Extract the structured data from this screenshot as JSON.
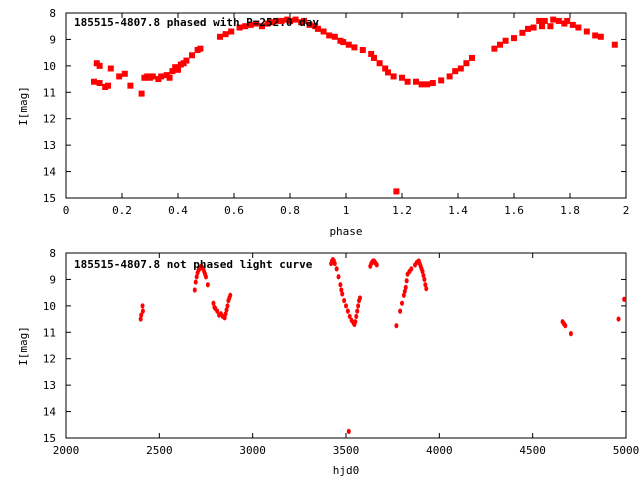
{
  "chart_data": [
    {
      "type": "scatter",
      "title": "185515-4807.8 phased with P=252.0 day",
      "xlabel": "phase",
      "ylabel": "I[mag]",
      "xlim": [
        0,
        2
      ],
      "ylim": [
        15,
        8
      ],
      "y_inverted": true,
      "x_ticks": [
        0,
        0.2,
        0.4,
        0.6,
        0.8,
        1,
        1.2,
        1.4,
        1.6,
        1.8,
        2
      ],
      "x_tick_labels": [
        "0",
        "0.2",
        "0.4",
        "0.6",
        "0.8",
        "1",
        "1.2",
        "1.4",
        "1.6",
        "1.8",
        "2"
      ],
      "y_ticks": [
        8,
        9,
        10,
        11,
        12,
        13,
        14,
        15
      ],
      "y_tick_labels": [
        "8",
        "9",
        "10",
        "11",
        "12",
        "13",
        "14",
        "15"
      ],
      "grid": false,
      "marker_color": "#ff0000",
      "marker": "filled-square",
      "series": [
        {
          "points": [
            [
              0.1,
              10.6
            ],
            [
              0.11,
              9.9
            ],
            [
              0.12,
              10.0
            ],
            [
              0.12,
              10.65
            ],
            [
              0.14,
              10.8
            ],
            [
              0.15,
              10.75
            ],
            [
              0.16,
              10.1
            ],
            [
              0.19,
              10.4
            ],
            [
              0.21,
              10.3
            ],
            [
              0.23,
              10.75
            ],
            [
              0.27,
              11.05
            ],
            [
              0.28,
              10.45
            ],
            [
              0.29,
              10.4
            ],
            [
              0.3,
              10.45
            ],
            [
              0.31,
              10.4
            ],
            [
              0.33,
              10.5
            ],
            [
              0.34,
              10.4
            ],
            [
              0.36,
              10.35
            ],
            [
              0.37,
              10.45
            ],
            [
              0.38,
              10.2
            ],
            [
              0.39,
              10.05
            ],
            [
              0.4,
              10.15
            ],
            [
              0.41,
              9.95
            ],
            [
              0.42,
              9.9
            ],
            [
              0.43,
              9.8
            ],
            [
              0.45,
              9.6
            ],
            [
              0.47,
              9.4
            ],
            [
              0.48,
              9.35
            ],
            [
              0.55,
              8.9
            ],
            [
              0.57,
              8.8
            ],
            [
              0.59,
              8.7
            ],
            [
              0.62,
              8.55
            ],
            [
              0.64,
              8.5
            ],
            [
              0.66,
              8.45
            ],
            [
              0.68,
              8.4
            ],
            [
              0.7,
              8.5
            ],
            [
              0.72,
              8.4
            ],
            [
              0.73,
              8.35
            ],
            [
              0.75,
              8.3
            ],
            [
              0.77,
              8.3
            ],
            [
              0.79,
              8.25
            ],
            [
              0.8,
              8.3
            ],
            [
              0.82,
              8.25
            ],
            [
              0.84,
              8.35
            ],
            [
              0.85,
              8.3
            ],
            [
              0.87,
              8.45
            ],
            [
              0.89,
              8.5
            ],
            [
              0.9,
              8.6
            ],
            [
              0.92,
              8.7
            ],
            [
              0.94,
              8.85
            ],
            [
              0.96,
              8.9
            ],
            [
              0.98,
              9.05
            ],
            [
              0.99,
              9.1
            ],
            [
              1.01,
              9.2
            ],
            [
              1.03,
              9.3
            ],
            [
              1.06,
              9.4
            ],
            [
              1.09,
              9.55
            ],
            [
              1.1,
              9.7
            ],
            [
              1.12,
              9.9
            ],
            [
              1.14,
              10.1
            ],
            [
              1.15,
              10.25
            ],
            [
              1.17,
              10.4
            ],
            [
              1.18,
              14.75
            ],
            [
              1.2,
              10.45
            ],
            [
              1.22,
              10.6
            ],
            [
              1.25,
              10.6
            ],
            [
              1.27,
              10.7
            ],
            [
              1.29,
              10.7
            ],
            [
              1.31,
              10.65
            ],
            [
              1.34,
              10.55
            ],
            [
              1.37,
              10.4
            ],
            [
              1.39,
              10.2
            ],
            [
              1.41,
              10.1
            ],
            [
              1.43,
              9.9
            ],
            [
              1.45,
              9.7
            ],
            [
              1.53,
              9.35
            ],
            [
              1.55,
              9.2
            ],
            [
              1.57,
              9.05
            ],
            [
              1.6,
              8.95
            ],
            [
              1.63,
              8.75
            ],
            [
              1.65,
              8.6
            ],
            [
              1.67,
              8.55
            ],
            [
              1.69,
              8.3
            ],
            [
              1.7,
              8.5
            ],
            [
              1.71,
              8.3
            ],
            [
              1.73,
              8.5
            ],
            [
              1.74,
              8.25
            ],
            [
              1.76,
              8.3
            ],
            [
              1.78,
              8.4
            ],
            [
              1.79,
              8.3
            ],
            [
              1.81,
              8.45
            ],
            [
              1.83,
              8.55
            ],
            [
              1.86,
              8.7
            ],
            [
              1.89,
              8.85
            ],
            [
              1.91,
              8.9
            ],
            [
              1.96,
              9.2
            ]
          ]
        }
      ]
    },
    {
      "type": "scatter",
      "title": "185515-4807.8 not phased light curve",
      "xlabel": "hjd0",
      "ylabel": "I[mag]",
      "xlim": [
        2000,
        5000
      ],
      "ylim": [
        15,
        8
      ],
      "y_inverted": true,
      "x_ticks": [
        2000,
        2500,
        3000,
        3500,
        4000,
        4500,
        5000
      ],
      "x_tick_labels": [
        "2000",
        "2500",
        "3000",
        "3500",
        "4000",
        "4500",
        "5000"
      ],
      "y_ticks": [
        8,
        9,
        10,
        11,
        12,
        13,
        14,
        15
      ],
      "y_tick_labels": [
        "8",
        "9",
        "10",
        "11",
        "12",
        "13",
        "14",
        "15"
      ],
      "grid": false,
      "marker_color": "#ff0000",
      "marker": "filled-circle",
      "series": [
        {
          "points": [
            [
              2400,
              10.5
            ],
            [
              2403,
              10.35
            ],
            [
              2410,
              10.0
            ],
            [
              2412,
              10.2
            ],
            [
              2690,
              9.4
            ],
            [
              2695,
              9.1
            ],
            [
              2700,
              8.9
            ],
            [
              2705,
              8.75
            ],
            [
              2710,
              8.65
            ],
            [
              2715,
              8.6
            ],
            [
              2720,
              8.55
            ],
            [
              2725,
              8.5
            ],
            [
              2730,
              8.55
            ],
            [
              2735,
              8.6
            ],
            [
              2740,
              8.7
            ],
            [
              2745,
              8.8
            ],
            [
              2750,
              8.9
            ],
            [
              2760,
              9.2
            ],
            [
              2790,
              9.9
            ],
            [
              2795,
              10.05
            ],
            [
              2800,
              10.1
            ],
            [
              2810,
              10.2
            ],
            [
              2820,
              10.35
            ],
            [
              2830,
              10.3
            ],
            [
              2840,
              10.4
            ],
            [
              2850,
              10.45
            ],
            [
              2855,
              10.3
            ],
            [
              2860,
              10.15
            ],
            [
              2865,
              10.0
            ],
            [
              2870,
              9.8
            ],
            [
              2875,
              9.7
            ],
            [
              2880,
              9.6
            ],
            [
              3420,
              8.4
            ],
            [
              3425,
              8.3
            ],
            [
              3430,
              8.25
            ],
            [
              3435,
              8.3
            ],
            [
              3440,
              8.4
            ],
            [
              3450,
              8.6
            ],
            [
              3460,
              8.9
            ],
            [
              3470,
              9.2
            ],
            [
              3475,
              9.4
            ],
            [
              3480,
              9.55
            ],
            [
              3490,
              9.8
            ],
            [
              3500,
              10.0
            ],
            [
              3510,
              10.2
            ],
            [
              3520,
              10.4
            ],
            [
              3530,
              10.55
            ],
            [
              3540,
              10.65
            ],
            [
              3545,
              10.7
            ],
            [
              3550,
              10.6
            ],
            [
              3555,
              10.4
            ],
            [
              3560,
              10.2
            ],
            [
              3565,
              10.0
            ],
            [
              3570,
              9.8
            ],
            [
              3575,
              9.7
            ],
            [
              3515,
              14.75
            ],
            [
              3630,
              8.5
            ],
            [
              3635,
              8.4
            ],
            [
              3640,
              8.35
            ],
            [
              3645,
              8.3
            ],
            [
              3650,
              8.3
            ],
            [
              3655,
              8.35
            ],
            [
              3660,
              8.4
            ],
            [
              3665,
              8.45
            ],
            [
              3770,
              10.75
            ],
            [
              3790,
              10.2
            ],
            [
              3800,
              9.9
            ],
            [
              3810,
              9.6
            ],
            [
              3815,
              9.45
            ],
            [
              3820,
              9.3
            ],
            [
              3825,
              9.05
            ],
            [
              3830,
              8.8
            ],
            [
              3840,
              8.7
            ],
            [
              3850,
              8.6
            ],
            [
              3870,
              8.45
            ],
            [
              3880,
              8.35
            ],
            [
              3890,
              8.3
            ],
            [
              3895,
              8.4
            ],
            [
              3900,
              8.5
            ],
            [
              3905,
              8.6
            ],
            [
              3910,
              8.7
            ],
            [
              3915,
              8.85
            ],
            [
              3920,
              9.0
            ],
            [
              3925,
              9.2
            ],
            [
              3930,
              9.35
            ],
            [
              4660,
              10.6
            ],
            [
              4665,
              10.65
            ],
            [
              4670,
              10.7
            ],
            [
              4675,
              10.75
            ],
            [
              4705,
              11.05
            ],
            [
              4960,
              10.5
            ],
            [
              4990,
              9.75
            ]
          ]
        }
      ]
    }
  ]
}
